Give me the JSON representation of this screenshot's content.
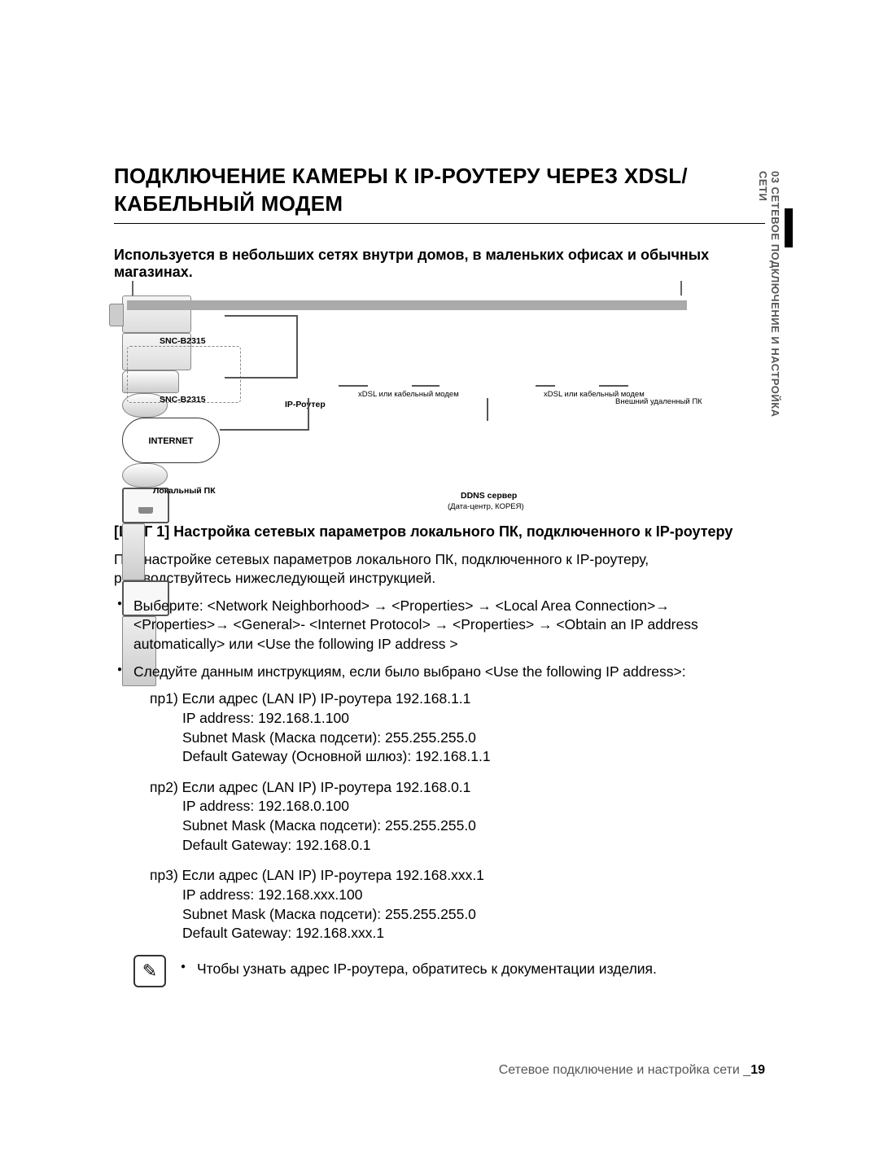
{
  "title": "ПОДКЛЮЧЕНИЕ КАМЕРЫ К IP-РОУТЕРУ ЧЕРЕЗ XDSL/КАБЕЛЬНЫЙ МОДЕМ",
  "intro": "Используется в небольших сетях внутри домов, в маленьких офисах и обычных магазинах.",
  "diagram": {
    "camera_model": "SNC-B2315",
    "ip_router": "IP-Роутер",
    "modem_left": "xDSL или кабельный модем",
    "internet": "INTERNET",
    "modem_right": "xDSL или кабельный модем",
    "remote_pc": "Внешний удаленный ПК",
    "local_pc": "Локальный ПК",
    "ddns_server": "DDNS сервер",
    "ddns_loc": "(Дата-центр, КОРЕЯ)"
  },
  "step1_heading": "[ШАГ 1] Настройка сетевых параметров локального ПК, подключенного к IP-роутеру",
  "step1_intro": "При настройке сетевых параметров локального ПК, подключенного к IP-роутеру, руководствуйтесь нижеследующей инструкцией.",
  "bullet1": "Выберите: <Network Neighborhood> → <Properties> → <Local Area Connection>→ <Properties>→ <General>- <Internet Protocol> → <Properties> → <Obtain an IP address automatically> или <Use the following IP address >",
  "bullet2": "Следуйте данным инструкциям, если было выбрано <Use the following IP address>:",
  "examples": [
    {
      "head": "пр1) Если адрес (LAN IP) IP-роутера 192.168.1.1",
      "ip": "IP address: 192.168.1.100",
      "mask": "Subnet Mask (Маска подсети): 255.255.255.0",
      "gw": "Default Gateway (Основной шлюз): 192.168.1.1"
    },
    {
      "head": "пр2) Если адрес (LAN IP) IP-роутера  192.168.0.1",
      "ip": "IP address: 192.168.0.100",
      "mask": "Subnet Mask (Маска подсети): 255.255.255.0",
      "gw": "Default Gateway: 192.168.0.1"
    },
    {
      "head": "пр3) Если адрес (LAN IP) IP-роутера  192.168.xxx.1",
      "ip": "IP address: 192.168.xxx.100",
      "mask": "Subnet Mask (Маска подсети): 255.255.255.0",
      "gw": "Default Gateway: 192.168.xxx.1"
    }
  ],
  "note": "Чтобы узнать адрес IP-роутера, обратитесь к документации изделия.",
  "footer_text": "Сетевое подключение и настройка сети _",
  "page_number": "19",
  "side_tab": "03  СЕТЕВОЕ ПОДКЛЮЧЕНИЕ И НАСТРОЙКА СЕТИ"
}
